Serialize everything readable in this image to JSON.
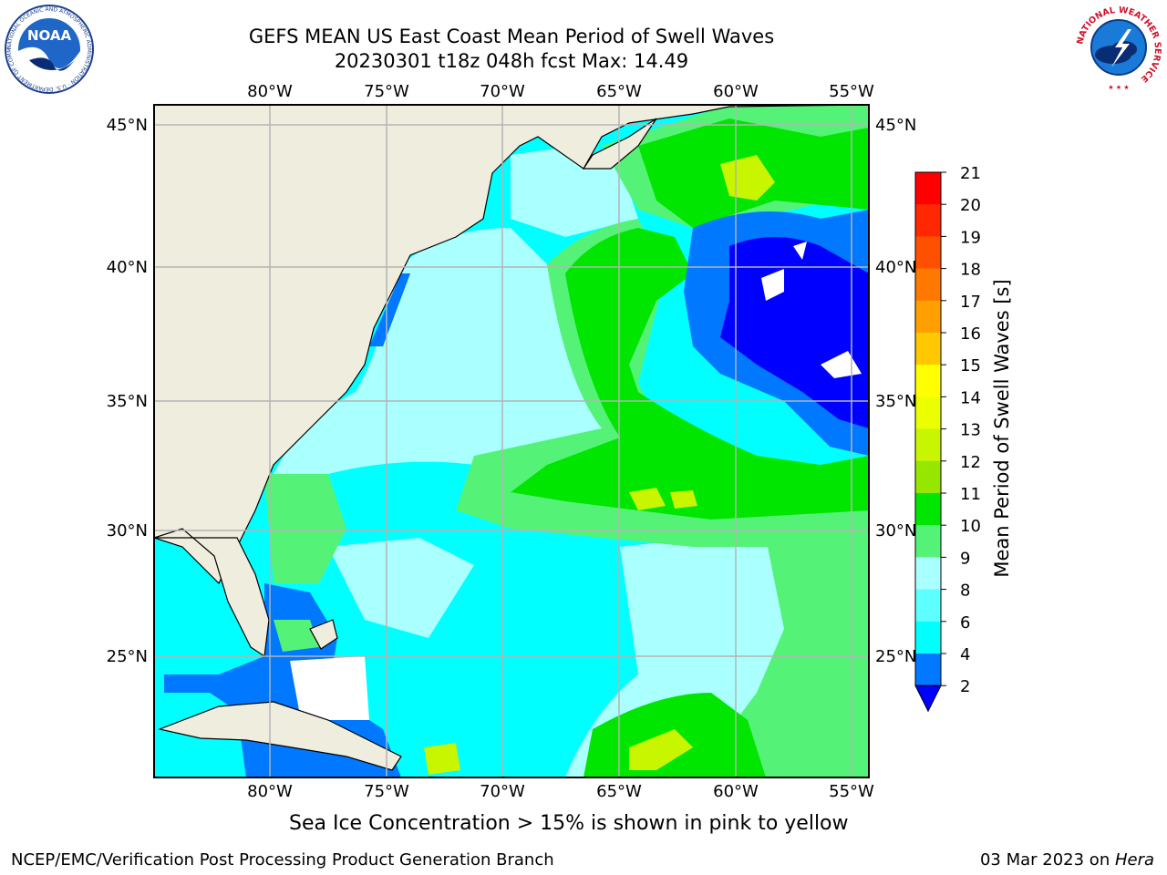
{
  "header": {
    "title_line_1": "GEFS MEAN US East Coast Mean Period of Swell Waves",
    "title_line_2": "20230301 t18z 048h fcst   Max: 14.49"
  },
  "logos": {
    "noaa_text": "NOAA",
    "noaa_ring_text": "NATIONAL OCEANIC AND ATMOSPHERIC ADMINISTRATION · U.S. DEPARTMENT OF COMMERCE",
    "nws_ring_text": "NATIONAL WEATHER SERVICE"
  },
  "map": {
    "lon_ticks": [
      "80°W",
      "75°W",
      "70°W",
      "65°W",
      "60°W",
      "55°W"
    ],
    "lat_ticks": [
      "45°N",
      "40°N",
      "35°N",
      "30°N",
      "25°N"
    ],
    "colors": {
      "land": "#efedde",
      "grid": "#b4b4b4"
    }
  },
  "colorbar": {
    "label": "Mean Period of Swell Waves [s]",
    "ticks": [
      "21",
      "20",
      "19",
      "18",
      "17",
      "16",
      "15",
      "14",
      "13",
      "12",
      "11",
      "10",
      "9",
      "8",
      "6",
      "4",
      "2"
    ],
    "colors_top_to_bottom": [
      "#ff0000",
      "#ff2800",
      "#ff5000",
      "#ff7800",
      "#ffa000",
      "#ffc800",
      "#ffff00",
      "#ebff00",
      "#c8f500",
      "#96e600",
      "#00e600",
      "#55f278",
      "#aaffff",
      "#5effff",
      "#00ffff",
      "#0078ff"
    ],
    "under_color": "#0000ff"
  },
  "caption": "Sea Ice Concentration > 15% is shown in pink to yellow",
  "footer": {
    "left": "NCEP/EMC/Verification Post Processing Product Generation Branch",
    "right_date": "03 Mar 2023 on ",
    "right_host": "Hera"
  }
}
